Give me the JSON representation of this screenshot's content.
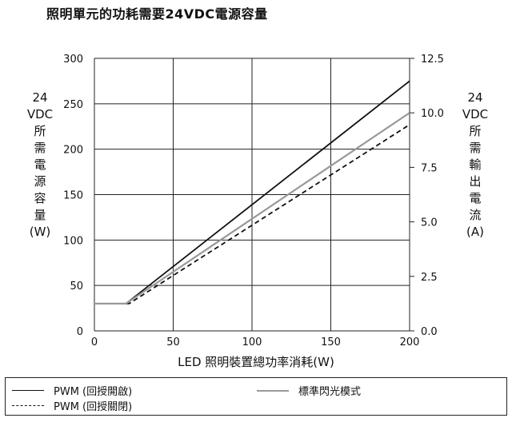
{
  "title": "照明單元的功耗需要24VDC電源容量",
  "colors": {
    "pwm_on": "#111111",
    "pwm_off": "#111111",
    "flash": "#999999",
    "grid": "#222222"
  },
  "chart_data": {
    "type": "line",
    "title": "照明單元的功耗需要24VDC電源容量",
    "xlabel": "LED 照明裝置總功率消耗(W)",
    "ylabel_left": [
      "24",
      "VDC",
      "所",
      "需",
      "電",
      "源",
      "容",
      "量",
      "(W)"
    ],
    "ylabel_right": [
      "24",
      "VDC",
      "所",
      "需",
      "輸",
      "出",
      "電",
      "流",
      "(A)"
    ],
    "xlim": [
      0,
      200
    ],
    "ylim": [
      0,
      300
    ],
    "ylim_right": [
      0,
      12.5
    ],
    "x_ticks": [
      "0",
      "50",
      "100",
      "150",
      "200"
    ],
    "y_ticks": [
      "0",
      "50",
      "100",
      "150",
      "200",
      "250",
      "300"
    ],
    "y_right_ticks": [
      "0.0",
      "2.5",
      "5.0",
      "7.5",
      "10.0",
      "12.5"
    ],
    "grid": true,
    "series": [
      {
        "name": "PWM  (回授開啟)",
        "style": "solid",
        "color": "#111111",
        "x": [
          0,
          20,
          200
        ],
        "y": [
          30,
          30,
          275
        ]
      },
      {
        "name": "PWM  (回授關閉)",
        "style": "dashed",
        "color": "#111111",
        "x": [
          0,
          22,
          200
        ],
        "y": [
          30,
          30,
          227
        ]
      },
      {
        "name": "標準閃光模式",
        "style": "solid",
        "color": "#999999",
        "x": [
          0,
          20,
          200
        ],
        "y": [
          30,
          30,
          240
        ]
      }
    ]
  }
}
